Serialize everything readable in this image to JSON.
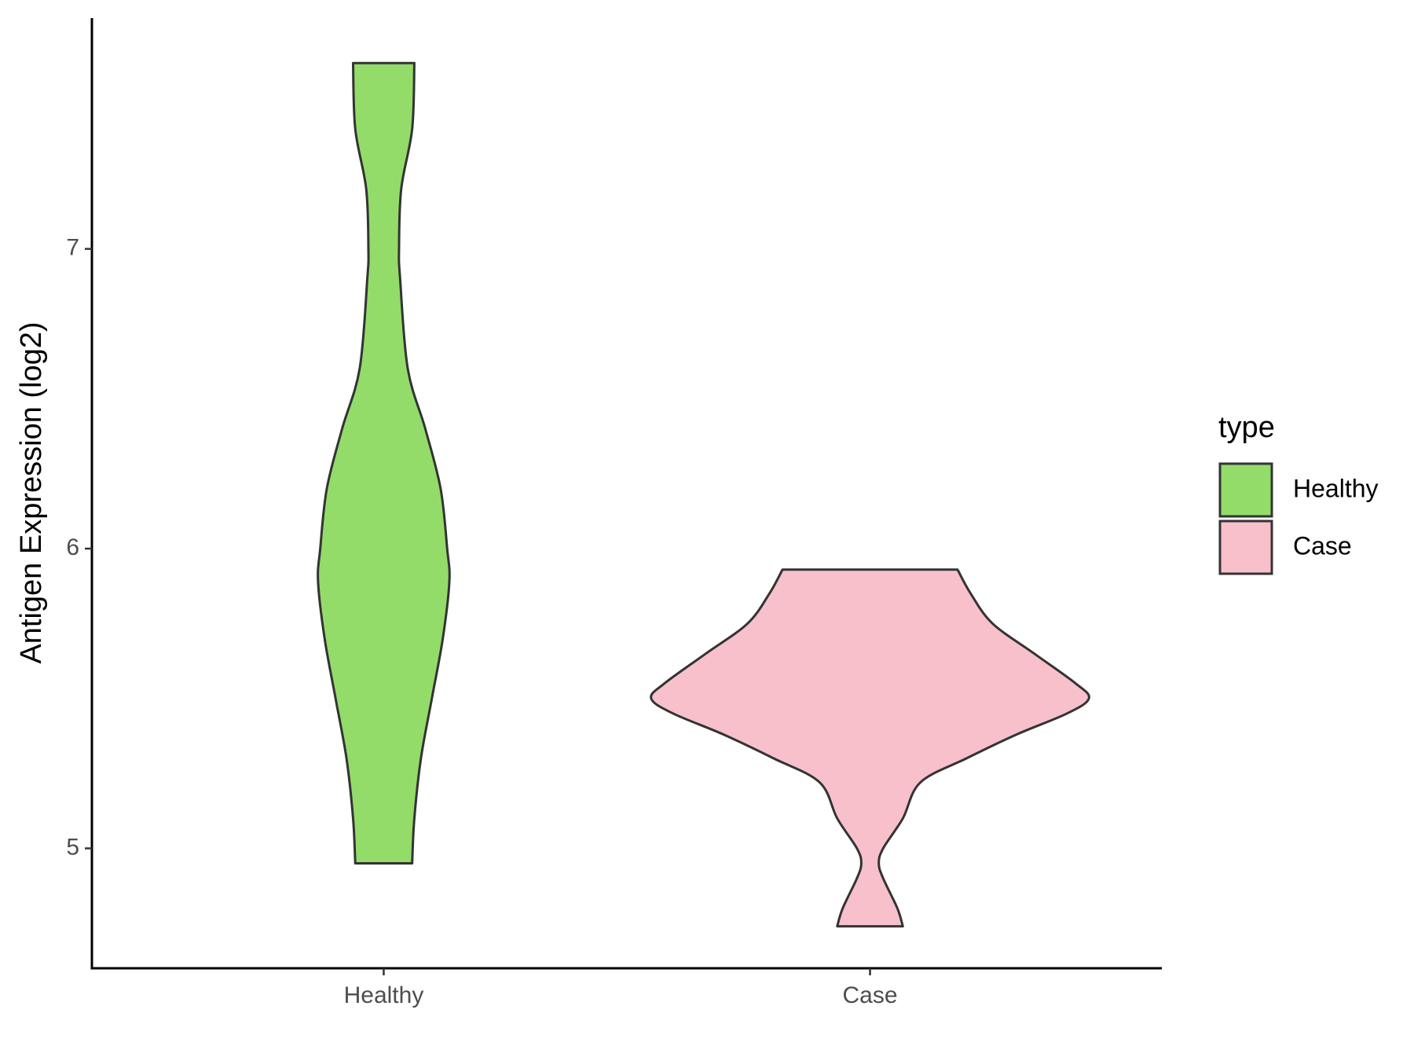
{
  "chart_data": {
    "type": "violin",
    "y_label": "Antigen Expression (log2)",
    "categories": [
      "Healthy",
      "Case"
    ],
    "legend_title": "type",
    "legend": "right",
    "ylim": [
      4.6,
      7.77
    ],
    "yticks": [
      5,
      6,
      7
    ],
    "series": [
      {
        "name": "Healthy",
        "color": "#93dc6a",
        "y": [
          4.95,
          5.1,
          5.3,
          5.5,
          5.7,
          5.89,
          6.0,
          6.2,
          6.4,
          6.6,
          6.9,
          7.0,
          7.2,
          7.4,
          7.62
        ],
        "width": [
          0.13,
          0.14,
          0.17,
          0.22,
          0.27,
          0.3,
          0.29,
          0.26,
          0.19,
          0.11,
          0.075,
          0.07,
          0.08,
          0.13,
          0.14
        ]
      },
      {
        "name": "Case",
        "color": "#f8c0cb",
        "y": [
          4.74,
          4.8,
          4.9,
          4.95,
          5.0,
          5.1,
          5.22,
          5.3,
          5.38,
          5.45,
          5.5,
          5.55,
          5.65,
          5.75,
          5.85,
          5.93
        ],
        "width": [
          0.15,
          0.125,
          0.06,
          0.04,
          0.06,
          0.15,
          0.23,
          0.44,
          0.67,
          0.9,
          1,
          0.94,
          0.75,
          0.56,
          0.46,
          0.4
        ]
      }
    ]
  }
}
